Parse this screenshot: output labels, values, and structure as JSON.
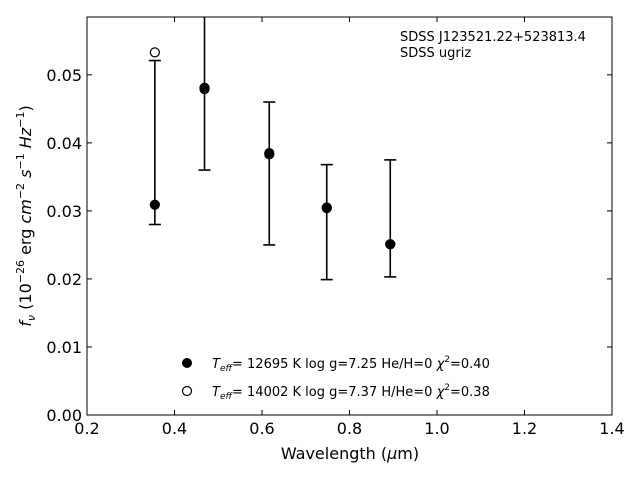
{
  "chart_data": {
    "type": "scatter",
    "annotation": [
      "SDSS J123521.22+523813.4",
      "SDSS ugriz"
    ],
    "xlabel": "Wavelength (μm)",
    "ylabel": "f_ν (10^-26 erg cm^-2 s^-1 Hz^-1)",
    "xlim": [
      0.2,
      1.4
    ],
    "ylim": [
      0.0,
      0.0585
    ],
    "xticks": [
      "0.2",
      "0.4",
      "0.6",
      "0.8",
      "1.0",
      "1.2",
      "1.4"
    ],
    "yticks": [
      "0.00",
      "0.01",
      "0.02",
      "0.03",
      "0.04",
      "0.05"
    ],
    "grid": false,
    "legend_position": "bottom-center",
    "observed": {
      "x": [
        0.3551,
        0.4686,
        0.6166,
        0.748,
        0.8932
      ],
      "y": [
        0.0309,
        0.0481,
        0.0385,
        0.0305,
        0.0251
      ],
      "yerr_low": [
        0.028,
        0.036,
        0.025,
        0.0199,
        0.0203
      ],
      "yerr_high": [
        0.0521,
        0.0587,
        0.046,
        0.0368,
        0.0375
      ]
    },
    "series": [
      {
        "name": "T_eff= 12695 K  log g=7.25  He/H=0  χ²=0.40",
        "marker": "filled-circle",
        "x": [
          0.3551,
          0.4686,
          0.6166,
          0.748,
          0.8932
        ],
        "y": [
          0.0309,
          0.0481,
          0.0385,
          0.0305,
          0.0251
        ]
      },
      {
        "name": "T_eff= 14002 K  log g=7.37  H/He=0  χ²=0.38",
        "marker": "open-circle",
        "x": [
          0.3551,
          0.4686,
          0.6166,
          0.748,
          0.8932
        ],
        "y": [
          0.0533,
          0.0479,
          0.0383,
          0.0304,
          0.0251
        ]
      }
    ]
  }
}
